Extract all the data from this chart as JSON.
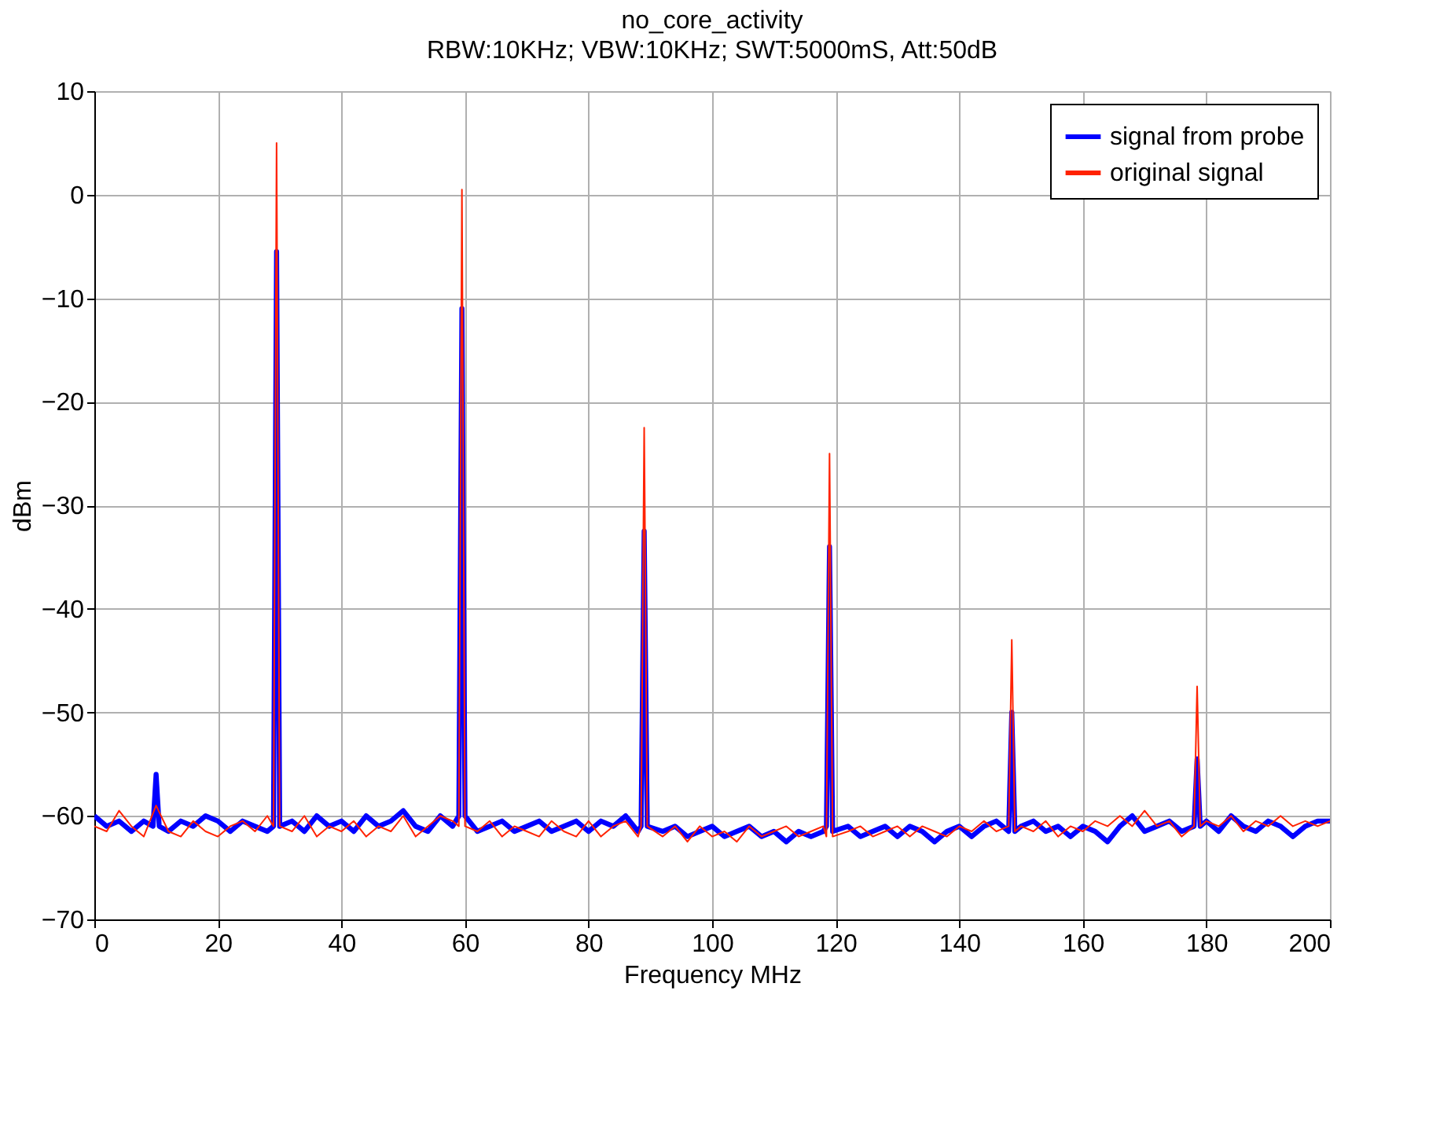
{
  "chart_data": {
    "type": "line",
    "title": "no_core_activity",
    "subtitle": "RBW:10KHz; VBW:10KHz; SWT:5000mS, Att:50dB",
    "xlabel": "Frequency MHz",
    "ylabel": "dBm",
    "xlim": [
      0,
      200
    ],
    "xticks": [
      0,
      20,
      40,
      60,
      80,
      100,
      120,
      140,
      160,
      180,
      200
    ],
    "ylim": [
      -70,
      10
    ],
    "yticks": [
      -70,
      -60,
      -50,
      -40,
      -30,
      -20,
      -10,
      0,
      10
    ],
    "grid": true,
    "legend": "top right",
    "series": [
      {
        "name": "signal from probe",
        "color": "#0000ff",
        "x": [
          0,
          2,
          4,
          6,
          8,
          9.5,
          10,
          10.5,
          12,
          14,
          16,
          18,
          20,
          22,
          24,
          26,
          28,
          29,
          29.5,
          30,
          32,
          34,
          36,
          38,
          40,
          42,
          44,
          46,
          48,
          50,
          52,
          54,
          56,
          58,
          59,
          59.5,
          60,
          62,
          64,
          66,
          68,
          70,
          72,
          74,
          76,
          78,
          80,
          82,
          84,
          86,
          88,
          88.5,
          89,
          89.5,
          92,
          94,
          96,
          98,
          100,
          102,
          104,
          106,
          108,
          110,
          112,
          114,
          116,
          118,
          118.5,
          119,
          119.5,
          122,
          124,
          126,
          128,
          130,
          132,
          134,
          136,
          138,
          140,
          142,
          144,
          146,
          148,
          148.5,
          149,
          150,
          152,
          154,
          156,
          158,
          160,
          162,
          164,
          166,
          168,
          170,
          172,
          174,
          176,
          178,
          178.5,
          179,
          180,
          182,
          184,
          186,
          188,
          190,
          192,
          194,
          196,
          198,
          200
        ],
        "values": [
          -60,
          -61,
          -60.5,
          -61.5,
          -60.5,
          -61,
          -56,
          -61,
          -61.5,
          -60.5,
          -61,
          -60,
          -60.5,
          -61.5,
          -60.5,
          -61,
          -61.5,
          -61,
          -5.5,
          -61,
          -60.5,
          -61.5,
          -60,
          -61,
          -60.5,
          -61.5,
          -60,
          -61,
          -60.5,
          -59.5,
          -61,
          -61.5,
          -60,
          -61,
          -60,
          -11,
          -60,
          -61.5,
          -61,
          -60.5,
          -61.5,
          -61,
          -60.5,
          -61.5,
          -61,
          -60.5,
          -61.5,
          -60.5,
          -61,
          -60,
          -61.5,
          -61,
          -32.5,
          -61,
          -61.5,
          -61,
          -62,
          -61.5,
          -61,
          -62,
          -61.5,
          -61,
          -62,
          -61.5,
          -62.5,
          -61.5,
          -62,
          -61.5,
          -61,
          -34,
          -61.5,
          -61,
          -62,
          -61.5,
          -61,
          -62,
          -61,
          -61.5,
          -62.5,
          -61.5,
          -61,
          -62,
          -61,
          -60.5,
          -61.5,
          -50,
          -61.5,
          -61,
          -60.5,
          -61.5,
          -61,
          -62,
          -61,
          -61.5,
          -62.5,
          -61,
          -60,
          -61.5,
          -61,
          -60.5,
          -61.5,
          -61,
          -54.5,
          -61,
          -60.5,
          -61.5,
          -60,
          -61,
          -61.5,
          -60.5,
          -61,
          -62,
          -61,
          -60.5,
          -60.5
        ]
      },
      {
        "name": "original signal",
        "color": "#ff2200",
        "x": [
          0,
          2,
          4,
          6,
          8,
          10,
          12,
          14,
          16,
          18,
          20,
          22,
          24,
          26,
          28,
          29,
          29.5,
          30,
          32,
          34,
          36,
          38,
          40,
          42,
          44,
          46,
          48,
          50,
          52,
          54,
          56,
          58,
          59,
          59.5,
          60,
          62,
          64,
          66,
          68,
          70,
          72,
          74,
          76,
          78,
          80,
          82,
          84,
          86,
          88,
          88.5,
          89,
          89.5,
          92,
          94,
          96,
          98,
          100,
          102,
          104,
          106,
          108,
          110,
          112,
          114,
          116,
          118,
          118.5,
          119,
          119.5,
          122,
          124,
          126,
          128,
          130,
          132,
          134,
          136,
          138,
          140,
          142,
          144,
          146,
          148,
          148.5,
          149,
          150,
          152,
          154,
          156,
          158,
          160,
          162,
          164,
          166,
          168,
          170,
          172,
          174,
          176,
          178,
          178.5,
          179,
          180,
          182,
          184,
          186,
          188,
          190,
          192,
          194,
          196,
          198,
          200
        ],
        "values": [
          -61,
          -61.5,
          -59.5,
          -61,
          -62,
          -59,
          -61.5,
          -62,
          -60.5,
          -61.5,
          -62,
          -61,
          -60.5,
          -61.5,
          -60,
          -61,
          5,
          -61,
          -61.5,
          -60,
          -62,
          -61,
          -61.5,
          -60.5,
          -62,
          -61,
          -61.5,
          -60,
          -62,
          -61,
          -60,
          -60.5,
          -61,
          0.5,
          -61,
          -61.5,
          -60.5,
          -62,
          -61,
          -61.5,
          -62,
          -60.5,
          -61.5,
          -62,
          -60.5,
          -62,
          -61,
          -60.5,
          -62,
          -61,
          -22.5,
          -61,
          -62,
          -61,
          -62.5,
          -61,
          -62,
          -61.5,
          -62.5,
          -61,
          -62,
          -61.5,
          -61,
          -62,
          -61.5,
          -61,
          -62,
          -25,
          -62,
          -61.5,
          -61,
          -62,
          -61.5,
          -61,
          -62,
          -61,
          -61.5,
          -62,
          -61,
          -61.5,
          -60.5,
          -61.5,
          -61,
          -43,
          -61.5,
          -61,
          -61.5,
          -60.5,
          -62,
          -61,
          -61.5,
          -60.5,
          -61,
          -60,
          -61,
          -59.5,
          -61,
          -60.5,
          -62,
          -61,
          -47.5,
          -61,
          -60.5,
          -61,
          -60,
          -61.5,
          -60.5,
          -61,
          -60,
          -61,
          -60.5,
          -61,
          -60.5
        ]
      }
    ]
  }
}
